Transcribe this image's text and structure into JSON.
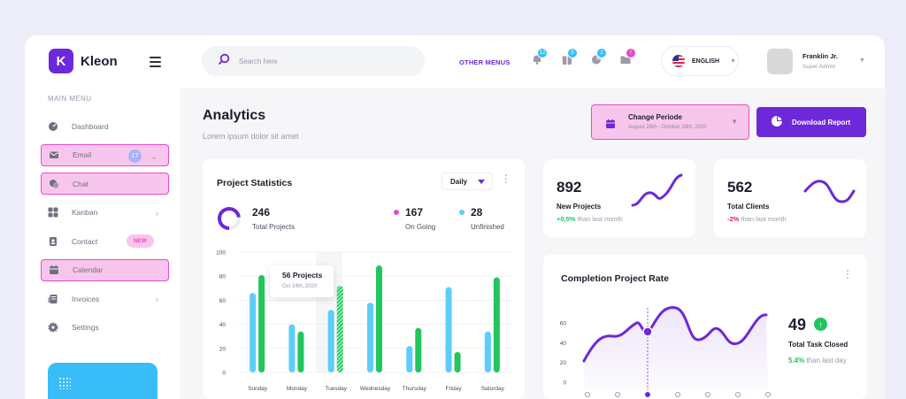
{
  "app": {
    "logo_letter": "K",
    "name": "Kleon"
  },
  "sidebar": {
    "section_title": "MAIN MENU",
    "items": [
      {
        "label": "Dashboard",
        "icon": "dashboard-icon"
      },
      {
        "label": "Email",
        "icon": "mail-icon",
        "badge": "17",
        "highlighted": true
      },
      {
        "label": "Chat",
        "icon": "chat-icon",
        "highlighted": true
      },
      {
        "label": "Kanban",
        "icon": "kanban-icon"
      },
      {
        "label": "Contact",
        "icon": "contact-icon",
        "badge": "NEW"
      },
      {
        "label": "Calendar",
        "icon": "calendar-icon",
        "highlighted": true
      },
      {
        "label": "Invoices",
        "icon": "invoice-icon"
      },
      {
        "label": "Settings",
        "icon": "settings-icon"
      }
    ]
  },
  "topbar": {
    "search_placeholder": "Search here",
    "other_menus": "OTHER MENUS",
    "notifications": [
      {
        "icon": "bell-icon",
        "count": "12",
        "color": "#38bdf8"
      },
      {
        "icon": "gift-icon",
        "count": "5",
        "color": "#38bdf8"
      },
      {
        "icon": "pie-chart-icon",
        "count": "2",
        "color": "#38bdf8"
      },
      {
        "icon": "folder-icon",
        "count": "!",
        "color": "#e84bc8"
      }
    ],
    "language": "ENGLISH",
    "user_name": "Franklin Jr.",
    "user_role": "Super Admin"
  },
  "header": {
    "title": "Analytics",
    "subtitle": "Lorem ipsum  dolor sit amet",
    "period_title": "Change Periode",
    "period_range": "August 28th - October 28th, 2020",
    "download_label": "Download Report"
  },
  "project_statistics": {
    "title": "Project Statistics",
    "filter": "Daily",
    "total_value": "246",
    "total_label": "Total Projects",
    "ongoing_value": "167",
    "ongoing_label": "On Going",
    "unfinished_value": "28",
    "unfinished_label": "Unfinished",
    "tooltip_title": "56 Projects",
    "tooltip_date": "Oct 24th, 2020"
  },
  "new_projects": {
    "value": "892",
    "label": "New Projects",
    "change": "+0,5%",
    "change_text": " than last month"
  },
  "total_clients": {
    "value": "562",
    "label": "Total Clients",
    "change": "-2%",
    "change_text": " than last month"
  },
  "completion": {
    "title": "Completion Project Rate",
    "value": "49",
    "label": "Total Task Closed",
    "change": "5.4%",
    "change_text": " than last day"
  },
  "colors": {
    "primary": "#6d28d9",
    "blue": "#5ccdfa",
    "green": "#22c55e",
    "pink": "#e84bc8"
  },
  "chart_data": [
    {
      "type": "bar",
      "title": "Project Statistics",
      "categories": [
        "Sunday",
        "Monday",
        "Tuesday",
        "Wednesday",
        "Thursday",
        "Friday",
        "Saturday"
      ],
      "ylim": [
        0,
        100
      ],
      "yticks": [
        0,
        20,
        40,
        60,
        80,
        100
      ],
      "grid": true,
      "series": [
        {
          "name": "Unfinished",
          "color": "#5ccdfa",
          "values": [
            66,
            40,
            52,
            58,
            22,
            71,
            34
          ]
        },
        {
          "name": "On Going",
          "color": "#22c55e",
          "values": [
            81,
            34,
            72,
            89,
            37,
            17,
            79
          ]
        }
      ]
    },
    {
      "type": "area",
      "title": "Completion Project Rate",
      "ylim": [
        0,
        70
      ],
      "yticks": [
        0,
        20,
        40,
        60
      ],
      "x_points": 7,
      "highlight_index": 2,
      "grid": false
    }
  ]
}
